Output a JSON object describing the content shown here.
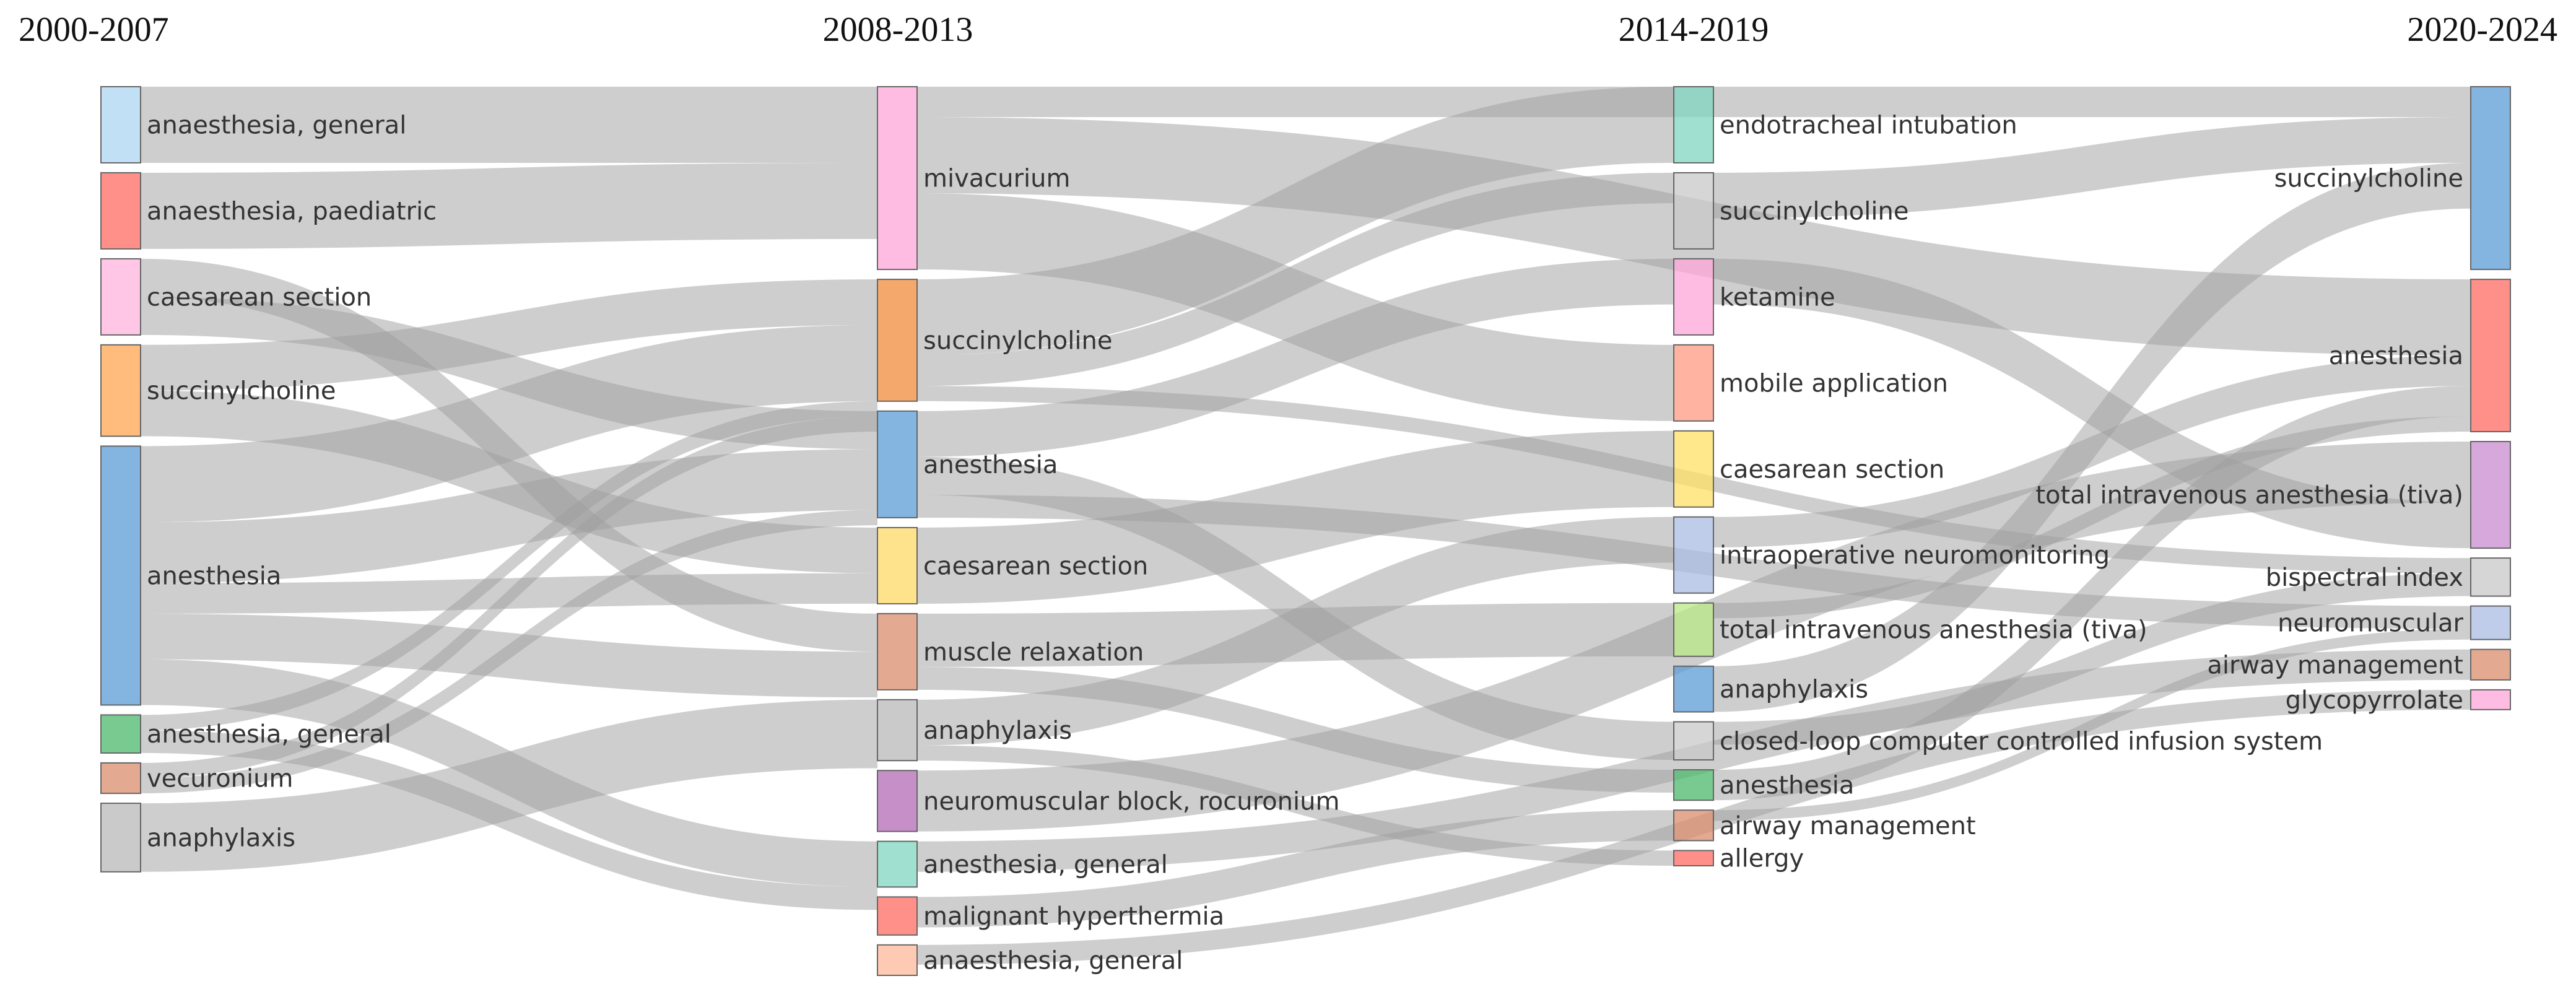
{
  "diagram": {
    "type": "sankey",
    "link_color": "#9e9e9e",
    "columns": [
      {
        "label": "2000-2007",
        "nodes": [
          {
            "id": "a_anaes_gen",
            "label": "anaesthesia, general",
            "color": "#aed6f1",
            "value": 5
          },
          {
            "id": "a_anaes_paed",
            "label": "anaesthesia, paediatric",
            "color": "#ff6961",
            "value": 5
          },
          {
            "id": "a_caes",
            "label": "caesarean section",
            "color": "#ffb3de",
            "value": 5
          },
          {
            "id": "a_succ",
            "label": "succinylcholine",
            "color": "#ffa552",
            "value": 6
          },
          {
            "id": "a_anes",
            "label": "anesthesia",
            "color": "#5b9bd5",
            "value": 17
          },
          {
            "id": "a_anes_gen",
            "label": "anesthesia, general",
            "color": "#4cb86b",
            "value": 2.5
          },
          {
            "id": "a_vec",
            "label": "vecuronium",
            "color": "#d98c6c",
            "value": 2
          },
          {
            "id": "a_anaph",
            "label": "anaphylaxis",
            "color": "#b8b8b8",
            "value": 4.5
          }
        ]
      },
      {
        "label": "2008-2013",
        "nodes": [
          {
            "id": "b_miva",
            "label": "mivacurium",
            "color": "#ffa6d9",
            "value": 12
          },
          {
            "id": "b_succ",
            "label": "succinylcholine",
            "color": "#f28b3a",
            "value": 8
          },
          {
            "id": "b_anes",
            "label": "anesthesia",
            "color": "#5b9bd5",
            "value": 7
          },
          {
            "id": "b_caes",
            "label": "caesarean section",
            "color": "#ffd966",
            "value": 5
          },
          {
            "id": "b_muscle",
            "label": "muscle relaxation",
            "color": "#d98c6c",
            "value": 5
          },
          {
            "id": "b_anaph",
            "label": "anaphylaxis",
            "color": "#b8b8b8",
            "value": 4
          },
          {
            "id": "b_nmb",
            "label": "neuromuscular block, rocuronium",
            "color": "#b36ab5",
            "value": 4
          },
          {
            "id": "b_anes_gen",
            "label": "anesthesia, general",
            "color": "#7fd6c0",
            "value": 3
          },
          {
            "id": "b_mh",
            "label": "malignant hyperthermia",
            "color": "#ff6961",
            "value": 2.5
          },
          {
            "id": "b_anaes_gen",
            "label": "anaesthesia, general",
            "color": "#ffb899",
            "value": 2
          }
        ]
      },
      {
        "label": "2014-2019",
        "nodes": [
          {
            "id": "c_ett",
            "label": "endotracheal intubation",
            "color": "#7fd6c0",
            "value": 5
          },
          {
            "id": "c_succ",
            "label": "succinylcholine",
            "color": "#c8c8c8",
            "value": 5
          },
          {
            "id": "c_ket",
            "label": "ketamine",
            "color": "#ffa6d9",
            "value": 5
          },
          {
            "id": "c_mobile",
            "label": "mobile application",
            "color": "#ff9a80",
            "value": 5
          },
          {
            "id": "c_caes",
            "label": "caesarean section",
            "color": "#ffe066",
            "value": 5
          },
          {
            "id": "c_ion",
            "label": "intraoperative neuromonitoring",
            "color": "#a9bbe3",
            "value": 5
          },
          {
            "id": "c_tiva",
            "label": "total intravenous anesthesia (tiva)",
            "color": "#b8e986",
            "value": 3.5
          },
          {
            "id": "c_anaph",
            "label": "anaphylaxis",
            "color": "#5b9bd5",
            "value": 3
          },
          {
            "id": "c_loop",
            "label": "closed-loop computer controlled infusion system",
            "color": "#c8c8c8",
            "value": 2.5
          },
          {
            "id": "c_anes",
            "label": "anesthesia",
            "color": "#4cb86b",
            "value": 2
          },
          {
            "id": "c_airway",
            "label": "airway management",
            "color": "#d98c6c",
            "value": 2
          },
          {
            "id": "c_allergy",
            "label": "allergy",
            "color": "#ff6961",
            "value": 1
          }
        ]
      },
      {
        "label": "2020-2024",
        "nodes": [
          {
            "id": "d_succ",
            "label": "succinylcholine",
            "color": "#5b9bd5",
            "value": 12
          },
          {
            "id": "d_anes",
            "label": "anesthesia",
            "color": "#ff6961",
            "value": 10
          },
          {
            "id": "d_tiva",
            "label": "total intravenous anesthesia (tiva)",
            "color": "#c98bd0",
            "value": 7
          },
          {
            "id": "d_bis",
            "label": "bispectral index",
            "color": "#c8c8c8",
            "value": 2.5
          },
          {
            "id": "d_nm",
            "label": "neuromuscular",
            "color": "#a9bbe3",
            "value": 2.2
          },
          {
            "id": "d_airway",
            "label": "airway management",
            "color": "#d98c6c",
            "value": 2
          },
          {
            "id": "d_glyco",
            "label": "glycopyrrolate",
            "color": "#ffa6d9",
            "value": 1.3
          }
        ]
      }
    ],
    "links": [
      {
        "source": "a_anaes_gen",
        "target": "b_miva",
        "value": 5
      },
      {
        "source": "a_anaes_paed",
        "target": "b_miva",
        "value": 5
      },
      {
        "source": "a_caes",
        "target": "b_muscle",
        "value": 2.5
      },
      {
        "source": "a_caes",
        "target": "b_anes",
        "value": 2.5
      },
      {
        "source": "a_succ",
        "target": "b_succ",
        "value": 3
      },
      {
        "source": "a_succ",
        "target": "b_caes",
        "value": 3
      },
      {
        "source": "a_anes",
        "target": "b_succ",
        "value": 5
      },
      {
        "source": "a_anes",
        "target": "b_anes",
        "value": 4
      },
      {
        "source": "a_anes",
        "target": "b_caes",
        "value": 2
      },
      {
        "source": "a_anes",
        "target": "b_muscle",
        "value": 3
      },
      {
        "source": "a_anes",
        "target": "b_anes_gen",
        "value": 3
      },
      {
        "source": "a_anes_gen",
        "target": "b_succ",
        "value": 1
      },
      {
        "source": "a_anes_gen",
        "target": "b_anes_gen",
        "value": 1.5
      },
      {
        "source": "a_vec",
        "target": "b_succ",
        "value": 1
      },
      {
        "source": "a_vec",
        "target": "b_anes",
        "value": 1
      },
      {
        "source": "a_anaph",
        "target": "b_anaph",
        "value": 4.5
      },
      {
        "source": "b_miva",
        "target": "d_succ",
        "value": 2
      },
      {
        "source": "b_miva",
        "target": "d_anes",
        "value": 5
      },
      {
        "source": "b_miva",
        "target": "c_mobile",
        "value": 5
      },
      {
        "source": "b_succ",
        "target": "c_ett",
        "value": 5
      },
      {
        "source": "b_succ",
        "target": "c_succ",
        "value": 2
      },
      {
        "source": "b_succ",
        "target": "d_bis",
        "value": 1
      },
      {
        "source": "b_anes",
        "target": "c_ket",
        "value": 3
      },
      {
        "source": "b_anes",
        "target": "c_loop",
        "value": 2.5
      },
      {
        "source": "b_anes",
        "target": "d_nm",
        "value": 1.5
      },
      {
        "source": "b_caes",
        "target": "c_caes",
        "value": 5
      },
      {
        "source": "b_muscle",
        "target": "c_tiva",
        "value": 3.5
      },
      {
        "source": "b_muscle",
        "target": "c_anes",
        "value": 1.5
      },
      {
        "source": "b_anaph",
        "target": "c_ion",
        "value": 3
      },
      {
        "source": "b_anaph",
        "target": "c_allergy",
        "value": 1
      },
      {
        "source": "b_nmb",
        "target": "d_tiva",
        "value": 4
      },
      {
        "source": "b_anes_gen",
        "target": "d_airway",
        "value": 2
      },
      {
        "source": "b_mh",
        "target": "c_airway",
        "value": 2
      },
      {
        "source": "b_anaes_gen",
        "target": "d_glyco",
        "value": 1.3
      },
      {
        "source": "c_succ",
        "target": "d_succ",
        "value": 3
      },
      {
        "source": "c_ket",
        "target": "d_tiva",
        "value": 3
      },
      {
        "source": "c_ion",
        "target": "d_anes",
        "value": 2
      },
      {
        "source": "c_anaph",
        "target": "d_succ",
        "value": 3
      },
      {
        "source": "c_loop",
        "target": "d_bis",
        "value": 1.5
      },
      {
        "source": "c_anes",
        "target": "d_anes",
        "value": 2
      },
      {
        "source": "c_airway",
        "target": "d_nm",
        "value": 0.7
      },
      {
        "source": "c_tiva",
        "target": "d_anes",
        "value": 1
      }
    ]
  }
}
